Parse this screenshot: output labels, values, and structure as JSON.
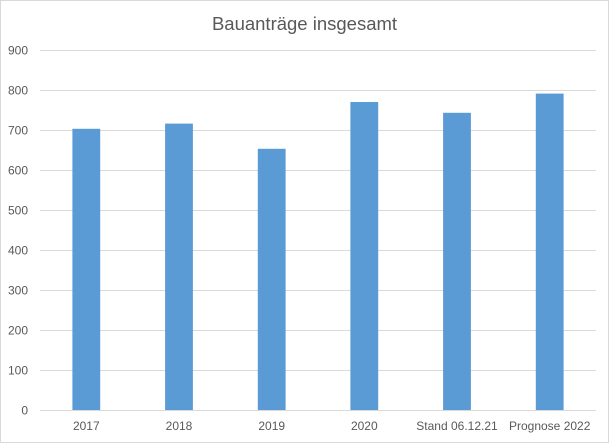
{
  "chart_data": {
    "type": "bar",
    "title": "Bauanträge insgesamt",
    "xlabel": "",
    "ylabel": "",
    "categories": [
      "2017",
      "2018",
      "2019",
      "2020",
      "Stand 06.12.21",
      "Prognose 2022"
    ],
    "values": [
      703,
      716,
      653,
      770,
      743,
      791
    ],
    "ylim": [
      0,
      900
    ],
    "yticks": [
      0,
      100,
      200,
      300,
      400,
      500,
      600,
      700,
      800,
      900
    ],
    "grid": true,
    "legend": "none",
    "colors": {
      "bar": "#5b9bd5",
      "grid": "#d9d9d9",
      "text": "#595959"
    }
  }
}
